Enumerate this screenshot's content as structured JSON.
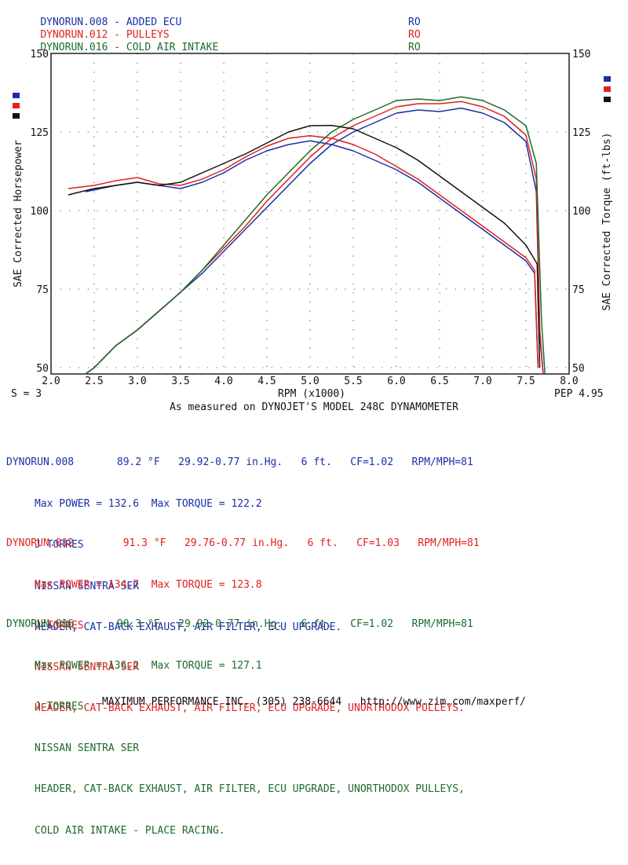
{
  "legend": [
    {
      "name": "DYNORUN.008 - ADDED ECU",
      "code": "RO",
      "color": "#1a2fa8"
    },
    {
      "name": "DYNORUN.012 - PULLEYS",
      "code": "RO",
      "color": "#e0201e"
    },
    {
      "name": "DYNORUN.016 - COLD AIR INTAKE",
      "code": "RO",
      "color": "#1d6b2c"
    }
  ],
  "chart_data": {
    "type": "line",
    "xlabel": "RPM (x1000)",
    "ylabel_left": "SAE Corrected Horsepower",
    "ylabel_right": "SAE Corrected Torque (ft-lbs)",
    "xlim": [
      2.0,
      8.0
    ],
    "ylim": [
      48,
      150
    ],
    "x_ticks": [
      "2.0",
      "2.5",
      "3.0",
      "3.5",
      "4.0",
      "4.5",
      "5.0",
      "5.5",
      "6.0",
      "6.5",
      "7.0",
      "7.5",
      "8.0"
    ],
    "y_ticks": [
      "50",
      "75",
      "100",
      "125",
      "150"
    ],
    "smoothing_label": "S = 3",
    "pep_label": "PEP 4.95",
    "grid": true,
    "series": [
      {
        "name": "DYNORUN.008 Power",
        "color": "#1a2fa8",
        "metric": "power",
        "x": [
          2.4,
          2.5,
          2.75,
          3.0,
          3.25,
          3.5,
          3.75,
          4.0,
          4.25,
          4.5,
          4.75,
          5.0,
          5.25,
          5.5,
          5.75,
          6.0,
          6.25,
          6.5,
          6.75,
          7.0,
          7.25,
          7.5,
          7.62,
          7.66,
          7.7
        ],
        "y": [
          48,
          50,
          57,
          62,
          68,
          74,
          80,
          87,
          94,
          101,
          108,
          115,
          121,
          125,
          128,
          131,
          132,
          131.5,
          132.6,
          131,
          128,
          122,
          106,
          60,
          48
        ]
      },
      {
        "name": "DYNORUN.012 Power",
        "color": "#e0201e",
        "metric": "power",
        "x": [
          2.4,
          2.5,
          2.75,
          3.0,
          3.25,
          3.5,
          3.75,
          4.0,
          4.25,
          4.5,
          4.75,
          5.0,
          5.25,
          5.5,
          5.75,
          6.0,
          6.25,
          6.5,
          6.75,
          7.0,
          7.25,
          7.5,
          7.62,
          7.66,
          7.7
        ],
        "y": [
          48,
          50,
          57,
          62,
          68,
          74,
          81,
          88,
          95,
          103,
          110,
          117,
          123,
          127,
          130,
          133,
          134,
          134,
          134.7,
          133,
          130,
          124,
          110,
          62,
          48
        ]
      },
      {
        "name": "DYNORUN.016 Power",
        "color": "#1d6b2c",
        "metric": "power",
        "x": [
          2.4,
          2.5,
          2.75,
          3.0,
          3.25,
          3.5,
          3.75,
          4.0,
          4.25,
          4.5,
          4.75,
          5.0,
          5.25,
          5.5,
          5.75,
          6.0,
          6.25,
          6.5,
          6.75,
          7.0,
          7.25,
          7.5,
          7.62,
          7.68,
          7.72
        ],
        "y": [
          48,
          50,
          57,
          62,
          68,
          74,
          81,
          89,
          97,
          105,
          112,
          119,
          125,
          129,
          132,
          135,
          135.5,
          135,
          136.2,
          135,
          132,
          127,
          115,
          65,
          48
        ]
      },
      {
        "name": "DYNORUN.008 Torque",
        "color": "#1a2fa8",
        "metric": "torque",
        "x": [
          2.4,
          2.75,
          3.0,
          3.25,
          3.5,
          3.75,
          4.0,
          4.25,
          4.5,
          4.75,
          5.0,
          5.25,
          5.5,
          5.75,
          6.0,
          6.25,
          6.5,
          6.75,
          7.0,
          7.25,
          7.5,
          7.6,
          7.64
        ],
        "y": [
          106,
          108,
          109,
          108,
          107,
          109,
          112,
          116,
          119,
          121,
          122.2,
          121,
          119,
          116,
          113,
          109,
          104,
          99,
          94,
          89,
          84,
          80,
          50
        ]
      },
      {
        "name": "DYNORUN.012 Torque",
        "color": "#e0201e",
        "metric": "torque",
        "x": [
          2.2,
          2.5,
          2.75,
          3.0,
          3.25,
          3.5,
          3.75,
          4.0,
          4.25,
          4.5,
          4.75,
          5.0,
          5.25,
          5.5,
          5.75,
          6.0,
          6.25,
          6.5,
          6.75,
          7.0,
          7.25,
          7.5,
          7.6,
          7.64
        ],
        "y": [
          107,
          108,
          109.5,
          110.5,
          108.5,
          108,
          110,
          113,
          117,
          120.5,
          123,
          123.8,
          123,
          121,
          118,
          114,
          110,
          105,
          100,
          95,
          90,
          85,
          81,
          50
        ]
      },
      {
        "name": "DYNORUN.016 Torque",
        "color": "#111111",
        "metric": "torque",
        "x": [
          2.2,
          2.5,
          2.75,
          3.0,
          3.25,
          3.5,
          3.75,
          4.0,
          4.25,
          4.5,
          4.75,
          5.0,
          5.25,
          5.5,
          5.75,
          6.0,
          6.25,
          6.5,
          6.75,
          7.0,
          7.25,
          7.5,
          7.63,
          7.66
        ],
        "y": [
          105,
          107,
          108,
          109,
          108,
          109,
          112,
          115,
          118,
          121.5,
          125,
          127,
          127.1,
          126,
          123,
          120,
          116,
          111,
          106,
          101,
          96,
          89,
          83,
          50
        ]
      }
    ],
    "legend_markers": [
      {
        "color": "#1a2fa8"
      },
      {
        "color": "#e0201e"
      },
      {
        "color": "#111111"
      }
    ]
  },
  "measured_on": "As measured on DYNOJET'S MODEL 248C DYNAMOMETER",
  "runs": [
    {
      "color": "#1a2fa8",
      "header": "DYNORUN.008       89.2 °F   29.92-0.77 in.Hg.   6 ft.   CF=1.02   RPM/MPH=81",
      "lines": [
        "Max POWER = 132.6  Max TORQUE = 122.2",
        "J TORRES",
        "NISSAN SENTRA SER",
        "HEADER, CAT-BACK EXHAUST, AIR FILTER, ECU UPGRADE."
      ]
    },
    {
      "color": "#e0201e",
      "header": "DYNORUN.012        91.3 °F   29.76-0.77 in.Hg.   6 ft.   CF=1.03   RPM/MPH=81",
      "lines": [
        "Max POWER = 134.7  Max TORQUE = 123.8",
        "J TORRES",
        "NISSAN SENTRA SER",
        "HEADER, CAT-BACK EXHAUST, AIR FILTER, ECU UPGRADE, UNORTHODOX PULLEYS."
      ]
    },
    {
      "color": "#1d6b2c",
      "header": "DYNORUN.016       90.3 °F   29.92-0.77 in.Hg.   6 ft.   CF=1.02   RPM/MPH=81",
      "lines": [
        "Max POWER = 136.2  Max TORQUE = 127.1",
        "J TORRES",
        "NISSAN SENTRA SER",
        "HEADER, CAT-BACK EXHAUST, AIR FILTER, ECU UPGRADE, UNORTHODOX PULLEYS,",
        "COLD AIR INTAKE - PLACE RACING."
      ]
    }
  ],
  "footer": "MAXIMUM PERFORMANCE INC. (305) 238-6644   http://www.zim.com/maxperf/"
}
